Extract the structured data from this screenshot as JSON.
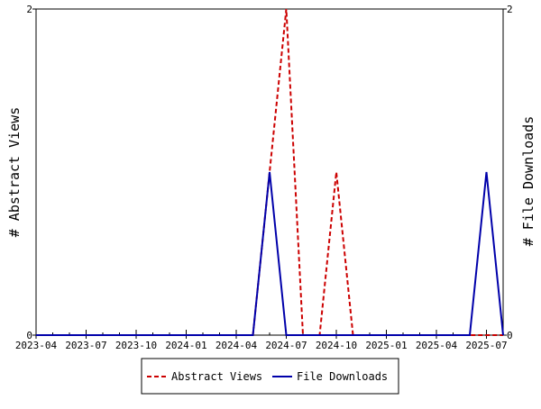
{
  "chart_data": {
    "type": "line",
    "title": "",
    "xlabel": "",
    "ylabel_left": "# Abstract Views",
    "ylabel_right": "# File Downloads",
    "x_ticks": [
      "2023-04",
      "2023-07",
      "2023-10",
      "2024-01",
      "2024-04",
      "2024-07",
      "2024-10",
      "2025-01",
      "2025-04",
      "2025-07"
    ],
    "x_start": "2023-04",
    "x_end": "2025-08",
    "y_left": {
      "range": [
        0,
        2
      ],
      "ticks": [
        "0",
        "2"
      ]
    },
    "y_right": {
      "range": [
        0,
        2
      ],
      "ticks": [
        "0",
        "2"
      ]
    },
    "grid": false,
    "legend_position": "bottom",
    "series": [
      {
        "name": "Abstract Views",
        "axis": "left",
        "color": "#cc0000",
        "style": "dashed",
        "points": [
          [
            "2023-04",
            0
          ],
          [
            "2023-05",
            0
          ],
          [
            "2023-06",
            0
          ],
          [
            "2023-07",
            0
          ],
          [
            "2023-08",
            0
          ],
          [
            "2023-09",
            0
          ],
          [
            "2023-10",
            0
          ],
          [
            "2023-11",
            0
          ],
          [
            "2023-12",
            0
          ],
          [
            "2024-01",
            0
          ],
          [
            "2024-02",
            0
          ],
          [
            "2024-03",
            0
          ],
          [
            "2024-04",
            0
          ],
          [
            "2024-05",
            0
          ],
          [
            "2024-06",
            1
          ],
          [
            "2024-07",
            2
          ],
          [
            "2024-08",
            0
          ],
          [
            "2024-09",
            0
          ],
          [
            "2024-10",
            1
          ],
          [
            "2024-11",
            0
          ],
          [
            "2024-12",
            0
          ],
          [
            "2025-01",
            0
          ],
          [
            "2025-02",
            0
          ],
          [
            "2025-03",
            0
          ],
          [
            "2025-04",
            0
          ],
          [
            "2025-05",
            0
          ],
          [
            "2025-06",
            0
          ],
          [
            "2025-07",
            0
          ],
          [
            "2025-08",
            0
          ]
        ]
      },
      {
        "name": "File Downloads",
        "axis": "right",
        "color": "#0000aa",
        "style": "solid",
        "points": [
          [
            "2023-04",
            0
          ],
          [
            "2023-05",
            0
          ],
          [
            "2023-06",
            0
          ],
          [
            "2023-07",
            0
          ],
          [
            "2023-08",
            0
          ],
          [
            "2023-09",
            0
          ],
          [
            "2023-10",
            0
          ],
          [
            "2023-11",
            0
          ],
          [
            "2023-12",
            0
          ],
          [
            "2024-01",
            0
          ],
          [
            "2024-02",
            0
          ],
          [
            "2024-03",
            0
          ],
          [
            "2024-04",
            0
          ],
          [
            "2024-05",
            0
          ],
          [
            "2024-06",
            1
          ],
          [
            "2024-07",
            0
          ],
          [
            "2024-08",
            0
          ],
          [
            "2024-09",
            0
          ],
          [
            "2024-10",
            0
          ],
          [
            "2024-11",
            0
          ],
          [
            "2024-12",
            0
          ],
          [
            "2025-01",
            0
          ],
          [
            "2025-02",
            0
          ],
          [
            "2025-03",
            0
          ],
          [
            "2025-04",
            0
          ],
          [
            "2025-05",
            0
          ],
          [
            "2025-06",
            0
          ],
          [
            "2025-07",
            1
          ],
          [
            "2025-08",
            0
          ]
        ]
      }
    ]
  }
}
